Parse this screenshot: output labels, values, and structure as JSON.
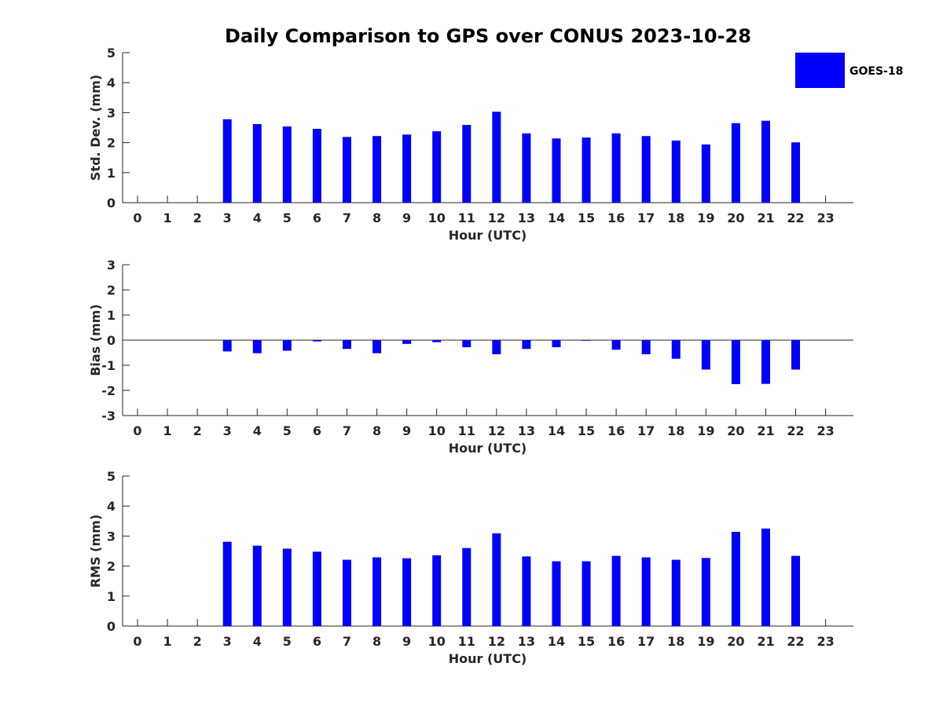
{
  "chart_data": [
    {
      "type": "bar",
      "title": "Daily Comparison to GPS over CONUS 2023-10-28",
      "xlabel": "Hour (UTC)",
      "ylabel": "Std. Dev. (mm)",
      "ylim": [
        0,
        5
      ],
      "yticks": [
        "0",
        "1",
        "2",
        "3",
        "4",
        "5"
      ],
      "categories": [
        "0",
        "1",
        "2",
        "3",
        "4",
        "5",
        "6",
        "7",
        "8",
        "9",
        "10",
        "11",
        "12",
        "13",
        "14",
        "15",
        "16",
        "17",
        "18",
        "19",
        "20",
        "21",
        "22",
        "23"
      ],
      "series": [
        {
          "name": "GOES-18",
          "color": "#0000ff",
          "values": [
            null,
            null,
            null,
            2.78,
            2.62,
            2.54,
            2.46,
            2.19,
            2.22,
            2.27,
            2.38,
            2.59,
            3.03,
            2.31,
            2.14,
            2.17,
            2.31,
            2.22,
            2.07,
            1.94,
            2.65,
            2.73,
            2.01,
            null
          ]
        }
      ],
      "grid": false,
      "legend": {
        "position": "top-right",
        "entries": [
          "GOES-18"
        ]
      }
    },
    {
      "type": "bar",
      "title": "",
      "xlabel": "Hour (UTC)",
      "ylabel": "Bias (mm)",
      "ylim": [
        -3,
        3
      ],
      "yticks": [
        "-3",
        "-2",
        "-1",
        "0",
        "1",
        "2",
        "3"
      ],
      "zero_line": true,
      "categories": [
        "0",
        "1",
        "2",
        "3",
        "4",
        "5",
        "6",
        "7",
        "8",
        "9",
        "10",
        "11",
        "12",
        "13",
        "14",
        "15",
        "16",
        "17",
        "18",
        "19",
        "20",
        "21",
        "22",
        "23"
      ],
      "series": [
        {
          "name": "GOES-18",
          "color": "#0000ff",
          "values": [
            null,
            null,
            null,
            -0.45,
            -0.52,
            -0.42,
            -0.05,
            -0.35,
            -0.52,
            -0.15,
            -0.08,
            -0.28,
            -0.56,
            -0.35,
            -0.28,
            -0.02,
            -0.38,
            -0.56,
            -0.74,
            -1.17,
            -1.75,
            -1.74,
            -1.17,
            null
          ]
        }
      ],
      "grid": false
    },
    {
      "type": "bar",
      "title": "",
      "xlabel": "Hour (UTC)",
      "ylabel": "RMS (mm)",
      "ylim": [
        0,
        5
      ],
      "yticks": [
        "0",
        "1",
        "2",
        "3",
        "4",
        "5"
      ],
      "categories": [
        "0",
        "1",
        "2",
        "3",
        "4",
        "5",
        "6",
        "7",
        "8",
        "9",
        "10",
        "11",
        "12",
        "13",
        "14",
        "15",
        "16",
        "17",
        "18",
        "19",
        "20",
        "21",
        "22",
        "23"
      ],
      "series": [
        {
          "name": "GOES-18",
          "color": "#0000ff",
          "values": [
            null,
            null,
            null,
            2.81,
            2.68,
            2.58,
            2.48,
            2.21,
            2.29,
            2.26,
            2.36,
            2.6,
            3.09,
            2.32,
            2.16,
            2.16,
            2.34,
            2.29,
            2.21,
            2.27,
            3.14,
            3.25,
            2.34,
            null
          ]
        }
      ],
      "grid": false
    }
  ]
}
